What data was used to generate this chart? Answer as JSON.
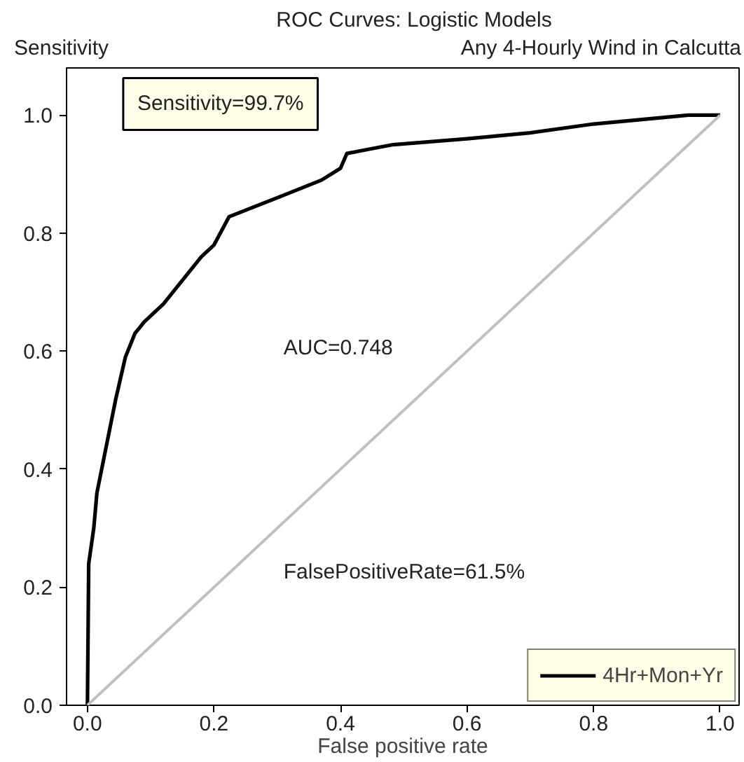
{
  "chart_data": {
    "type": "line",
    "title": "ROC Curves: Logistic Models",
    "subtitle": "Any 4-Hourly Wind in Calcutta",
    "xlabel": "False positive rate",
    "ylabel": "Sensitivity",
    "annotations": [
      "Sensitivity=99.7%",
      "AUC=0.748",
      "FalsePositiveRate=61.5%"
    ],
    "series": [
      {
        "name": "4Hr+Mon+Yr",
        "color": "#000000",
        "x": [
          0,
          0.002,
          0.01,
          0.015,
          0.03,
          0.045,
          0.06,
          0.075,
          0.09,
          0.12,
          0.15,
          0.18,
          0.2,
          0.224,
          0.3,
          0.37,
          0.4,
          0.41,
          0.483,
          0.6,
          0.7,
          0.8,
          0.9,
          0.95,
          1.0
        ],
        "values": [
          0,
          0.24,
          0.3,
          0.36,
          0.44,
          0.52,
          0.59,
          0.63,
          0.65,
          0.68,
          0.72,
          0.76,
          0.78,
          0.828,
          0.86,
          0.89,
          0.91,
          0.935,
          0.95,
          0.96,
          0.97,
          0.985,
          0.995,
          1.0,
          1.0
        ]
      },
      {
        "color": "#c0c0c0",
        "x": [
          0,
          1
        ],
        "values": [
          0,
          1
        ]
      }
    ],
    "xlim": [
      -0.033,
      1.03
    ],
    "ylim": [
      0,
      1.08
    ],
    "xticks": [
      {
        "value": 0,
        "label": "0.0"
      },
      0.2,
      0.4,
      0.6,
      0.8,
      {
        "value": 1,
        "label": "1.0"
      }
    ],
    "yticks": [
      {
        "value": 0,
        "label": "0.0"
      },
      0.2,
      0.4,
      0.6,
      0.8,
      {
        "value": 1,
        "label": "1.0"
      }
    ],
    "grid": false,
    "legend": "bottom right",
    "marker": "none",
    "line_style": "solid"
  }
}
